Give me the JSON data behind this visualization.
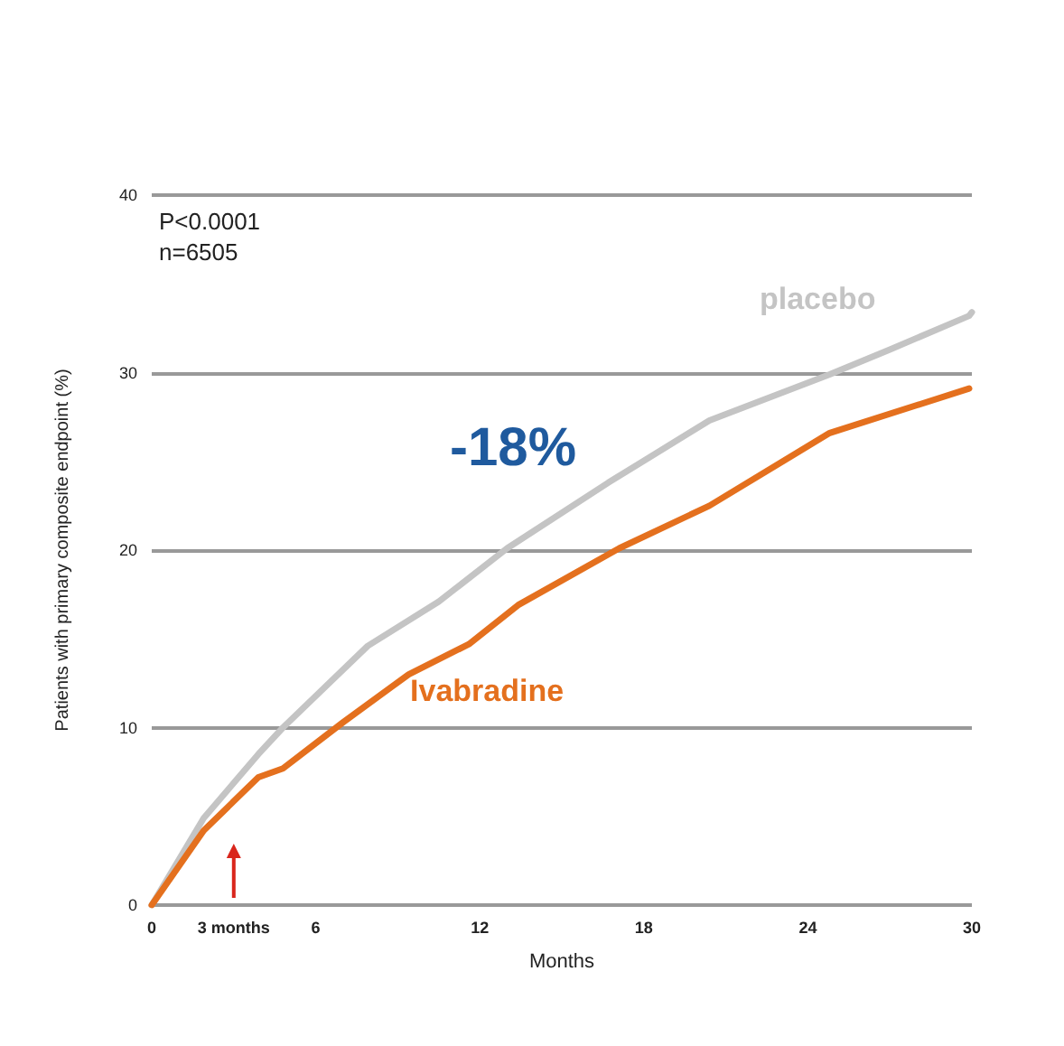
{
  "chart_data": {
    "type": "line",
    "xlabel": "Months",
    "ylabel": "Patients with primary composite endpoint (%)",
    "xlim": [
      0,
      30
    ],
    "xticks": [
      0,
      {
        "value": 3,
        "label": "3 months"
      },
      6,
      12,
      18,
      24,
      30
    ],
    "ylim": [
      0,
      40
    ],
    "yticks": [
      0,
      10,
      20,
      30,
      40
    ],
    "grid": "y",
    "legend": false,
    "marker": "none",
    "line_style": "solid",
    "annotations": [
      "P<0.0001",
      "n=6505",
      "-18%"
    ],
    "series": [
      {
        "name": "placebo",
        "color": "#c4c4c4",
        "x": [
          0,
          1.9,
          3.9,
          4.8,
          7.9,
          10.5,
          13,
          16.7,
          20.4,
          24.8,
          27,
          29.9,
          30
        ],
        "values": [
          0,
          4.9,
          8.5,
          10.0,
          14.6,
          17.1,
          20.1,
          23.8,
          27.3,
          29.9,
          31.3,
          33.2,
          33.4
        ]
      },
      {
        "name": "Ivabradine",
        "color": "#e4701e",
        "x": [
          0,
          1.9,
          3.9,
          4.8,
          7.0,
          9.4,
          11.6,
          13.4,
          17.1,
          20.4,
          24.8,
          29.9
        ],
        "values": [
          0,
          4.2,
          7.2,
          7.7,
          10.3,
          13.0,
          14.7,
          16.9,
          20.1,
          22.5,
          26.6,
          29.1
        ]
      }
    ]
  }
}
